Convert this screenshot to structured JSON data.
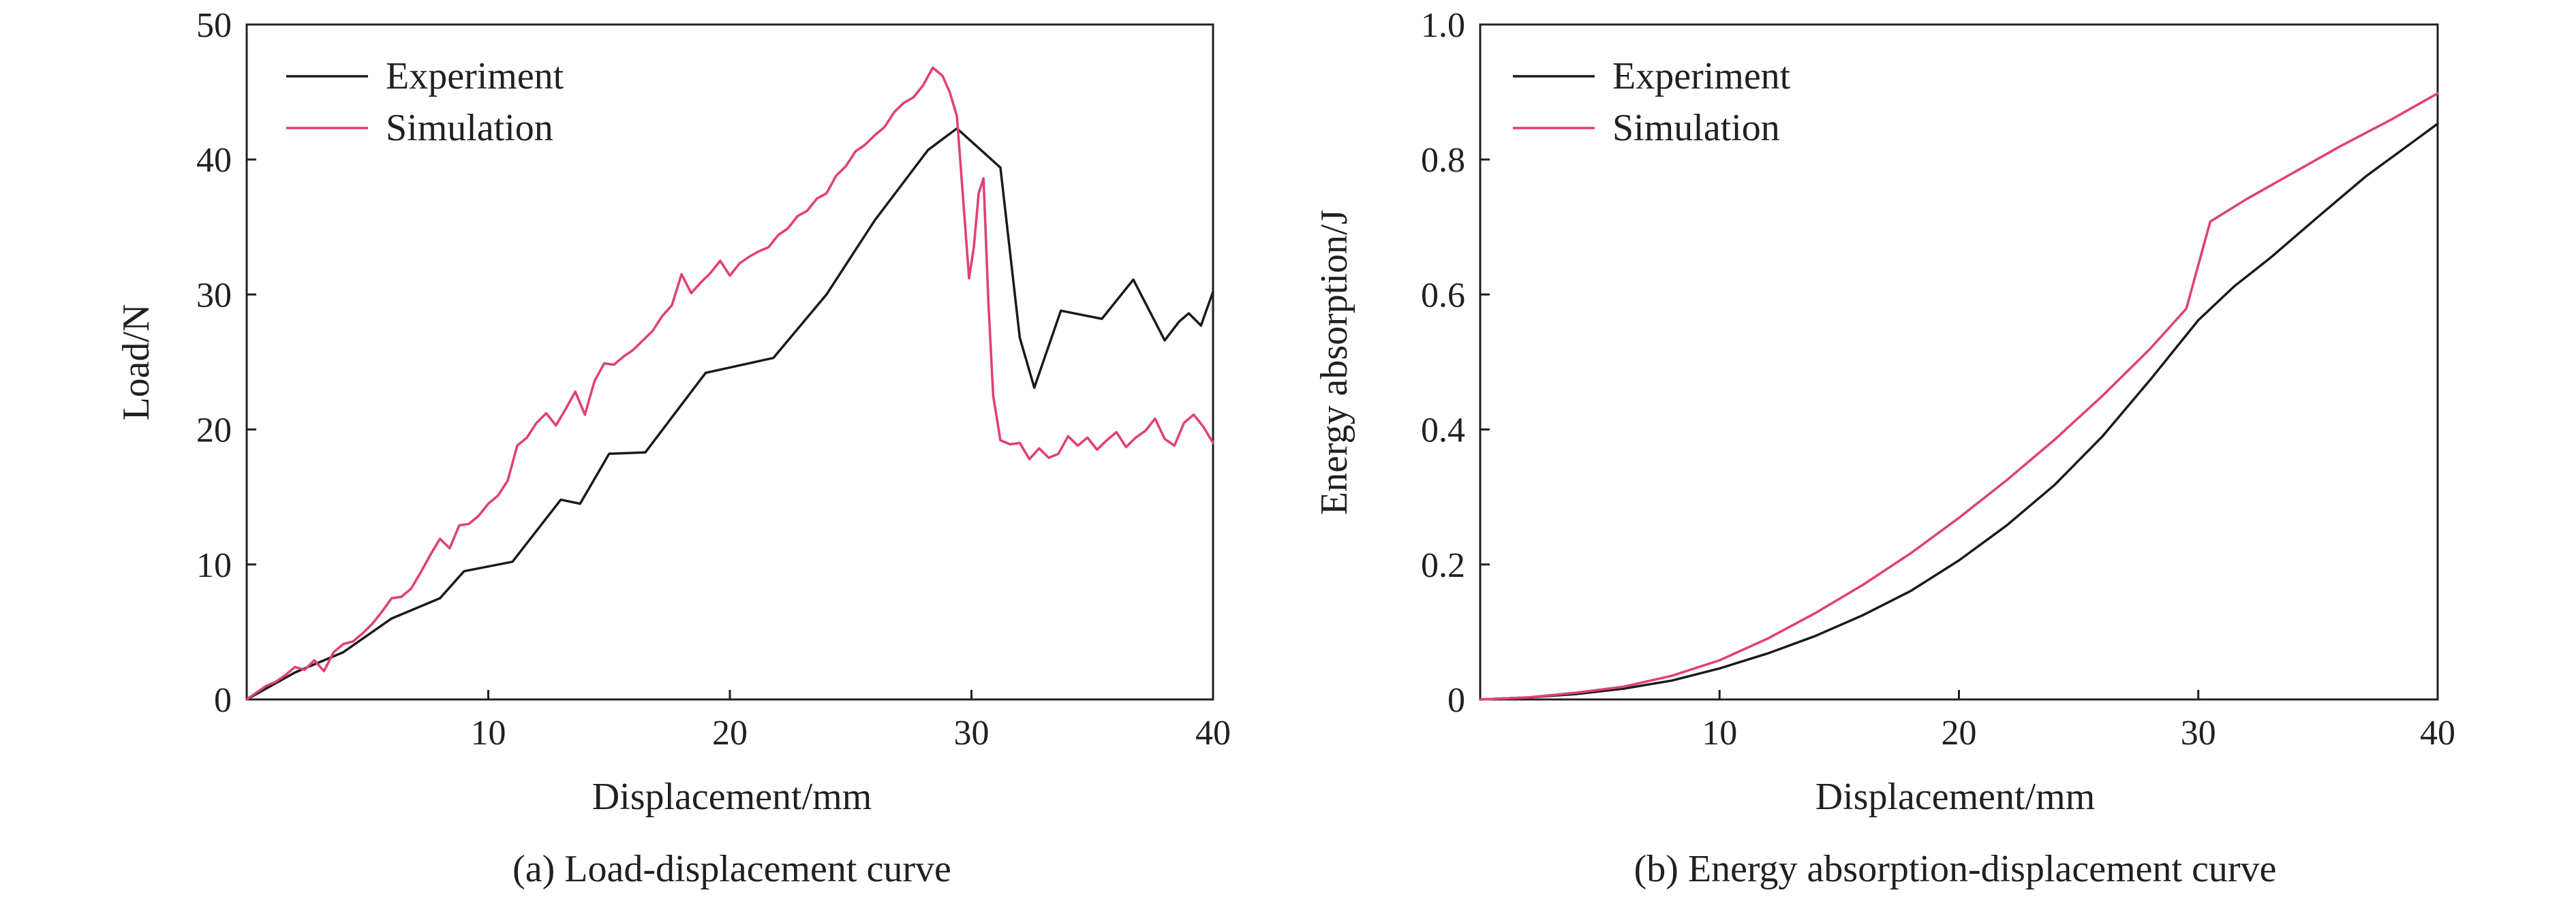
{
  "colors": {
    "experiment": "#1a1a1a",
    "simulation": "#e0407a",
    "simulation_highlight": "#e8612c",
    "axis": "#231f20"
  },
  "chart_data": [
    {
      "type": "line",
      "caption": "(a) Load-displacement curve",
      "xlabel": "Displacement/mm",
      "ylabel": "Load/N",
      "xlim": [
        0,
        40
      ],
      "ylim": [
        0,
        50
      ],
      "xticks": [
        "10",
        "20",
        "30",
        "40"
      ],
      "yticks": [
        "0",
        "10",
        "20",
        "30",
        "40",
        "50"
      ],
      "legend": "top-left",
      "grid": false,
      "series": [
        {
          "name": "Experiment",
          "color_key": "experiment",
          "x": [
            0,
            2,
            4,
            6,
            8,
            9,
            11,
            13,
            13.8,
            15,
            16.5,
            19,
            21.8,
            24,
            26,
            28.2,
            29.4,
            31.2,
            32,
            32.6,
            33.7,
            35.4,
            36.7,
            38,
            38.6,
            39,
            39.5,
            40
          ],
          "y": [
            0,
            2,
            3.5,
            6,
            7.5,
            9.5,
            10.2,
            14.8,
            14.5,
            18.2,
            18.3,
            24.2,
            25.3,
            30,
            35.5,
            40.7,
            42.3,
            39.4,
            26.8,
            23.1,
            28.8,
            28.2,
            31.1,
            26.6,
            28,
            28.6,
            27.7,
            30.2
          ]
        },
        {
          "name": "Simulation",
          "color_key": "simulation",
          "x": [
            0,
            0.4,
            0.8,
            1.2,
            1.6,
            2,
            2.4,
            2.8,
            3.2,
            3.6,
            4,
            4.4,
            4.8,
            5.2,
            5.6,
            6,
            6.4,
            6.8,
            7.2,
            7.6,
            8,
            8.4,
            8.8,
            9.2,
            9.6,
            10,
            10.4,
            10.8,
            11.2,
            11.6,
            12,
            12.4,
            12.8,
            13.2,
            13.6,
            14,
            14.4,
            14.8,
            15.2,
            15.6,
            16,
            16.4,
            16.8,
            17.2,
            17.6,
            18,
            18.4,
            18.8,
            19.2,
            19.6,
            20,
            20.4,
            20.8,
            21.2,
            21.6,
            22,
            22.4,
            22.8,
            23.2,
            23.6,
            24,
            24.4,
            24.8,
            25.2,
            25.6,
            26,
            26.4,
            26.8,
            27.2,
            27.6,
            28,
            28.4,
            28.8,
            29.1,
            29.4,
            29.7,
            29.9,
            30.1,
            30.3,
            30.5,
            30.7,
            30.9,
            31.2,
            31.6,
            32,
            32.4,
            32.8,
            33.2,
            33.6,
            34,
            34.4,
            34.8,
            35.2,
            35.6,
            36,
            36.4,
            36.8,
            37.2,
            37.6,
            38,
            38.4,
            38.8,
            39.2,
            39.6,
            40
          ],
          "y": [
            0,
            0.5,
            1,
            1.3,
            1.8,
            2.4,
            2.2,
            2.9,
            2.1,
            3.5,
            4.1,
            4.3,
            4.9,
            5.6,
            6.5,
            7.5,
            7.6,
            8.2,
            9.4,
            10.7,
            11.9,
            11.2,
            12.9,
            13,
            13.6,
            14.5,
            15.1,
            16.2,
            18.8,
            19.4,
            20.5,
            21.2,
            20.3,
            21.5,
            22.8,
            21.1,
            23.6,
            24.9,
            24.8,
            25.4,
            25.9,
            26.6,
            27.3,
            28.4,
            29.2,
            31.5,
            30.1,
            30.9,
            31.6,
            32.5,
            31.4,
            32.3,
            32.8,
            33.2,
            33.5,
            34.4,
            34.9,
            35.8,
            36.2,
            37.1,
            37.5,
            38.8,
            39.5,
            40.6,
            41.1,
            41.8,
            42.4,
            43.5,
            44.2,
            44.6,
            45.5,
            46.8,
            46.2,
            45,
            43.2,
            36,
            31.2,
            33.5,
            37.5,
            38.6,
            29.5,
            22.5,
            19.2,
            18.9,
            19,
            17.8,
            18.6,
            17.9,
            18.2,
            19.5,
            18.8,
            19.4,
            18.5,
            19.2,
            19.8,
            18.7,
            19.4,
            19.9,
            20.8,
            19.3,
            18.8,
            20.5,
            21.1,
            20.2,
            19
          ]
        }
      ]
    },
    {
      "type": "line",
      "caption": "(b) Energy absorption-displacement curve",
      "xlabel": "Displacement/mm",
      "ylabel": "Energy absorption/J",
      "xlim": [
        0,
        40
      ],
      "ylim": [
        0,
        1.0
      ],
      "xticks": [
        "10",
        "20",
        "30",
        "40"
      ],
      "yticks": [
        "0",
        "0.2",
        "0.4",
        "0.6",
        "0.8",
        "1.0"
      ],
      "legend": "top-left",
      "grid": false,
      "series": [
        {
          "name": "Experiment",
          "color_key": "experiment",
          "x": [
            0,
            2,
            4,
            6,
            8,
            10,
            12,
            14,
            16,
            18,
            20,
            22,
            24,
            26,
            28,
            30,
            31.5,
            33,
            35,
            37,
            40
          ],
          "y": [
            0,
            0.003,
            0.008,
            0.016,
            0.028,
            0.046,
            0.068,
            0.094,
            0.125,
            0.161,
            0.206,
            0.258,
            0.318,
            0.39,
            0.474,
            0.562,
            0.612,
            0.654,
            0.715,
            0.775,
            0.853
          ]
        },
        {
          "name": "Simulation",
          "color_key": "simulation",
          "x": [
            0,
            2,
            4,
            6,
            8,
            10,
            12,
            14,
            16,
            18,
            20,
            22,
            24,
            26,
            28,
            29.5,
            30.5,
            32,
            34,
            36,
            38,
            40
          ],
          "y": [
            0,
            0.003,
            0.01,
            0.019,
            0.035,
            0.058,
            0.09,
            0.128,
            0.17,
            0.217,
            0.269,
            0.325,
            0.385,
            0.45,
            0.52,
            0.579,
            0.708,
            0.741,
            0.781,
            0.821,
            0.858,
            0.898
          ]
        }
      ]
    }
  ]
}
